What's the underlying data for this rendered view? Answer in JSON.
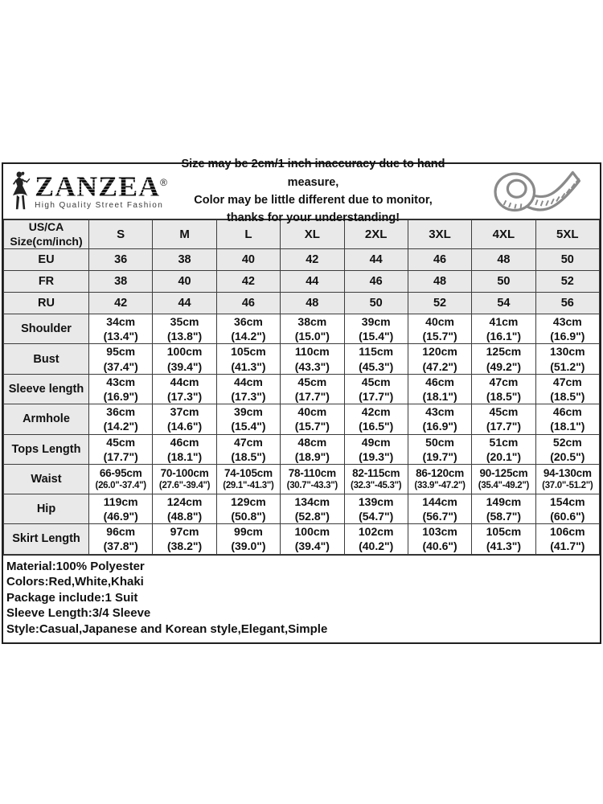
{
  "branding": {
    "name": "ZANZEA",
    "registered_mark": "®",
    "tagline": "High Quality Street Fashion"
  },
  "notice": {
    "lines": [
      "Size may be 2cm/1 inch inaccuracy due to hand measure,",
      "Color may be little different due to monitor,",
      "thanks for your understanding!"
    ]
  },
  "size_table": {
    "corner": {
      "line1": "US/CA",
      "line2": "Size(cm/inch)"
    },
    "size_columns": [
      "S",
      "M",
      "L",
      "XL",
      "2XL",
      "3XL",
      "4XL",
      "5XL"
    ],
    "region_rows": [
      {
        "label": "EU",
        "values": [
          "36",
          "38",
          "40",
          "42",
          "44",
          "46",
          "48",
          "50"
        ]
      },
      {
        "label": "FR",
        "values": [
          "38",
          "40",
          "42",
          "44",
          "46",
          "48",
          "50",
          "52"
        ]
      },
      {
        "label": "RU",
        "values": [
          "42",
          "44",
          "46",
          "48",
          "50",
          "52",
          "54",
          "56"
        ]
      }
    ],
    "measurement_rows": [
      {
        "label": "Shoulder",
        "cm": [
          "34cm",
          "35cm",
          "36cm",
          "38cm",
          "39cm",
          "40cm",
          "41cm",
          "43cm"
        ],
        "inch": [
          "(13.4\")",
          "(13.8\")",
          "(14.2\")",
          "(15.0\")",
          "(15.4\")",
          "(15.7\")",
          "(16.1\")",
          "(16.9\")"
        ]
      },
      {
        "label": "Bust",
        "cm": [
          "95cm",
          "100cm",
          "105cm",
          "110cm",
          "115cm",
          "120cm",
          "125cm",
          "130cm"
        ],
        "inch": [
          "(37.4\")",
          "(39.4\")",
          "(41.3\")",
          "(43.3\")",
          "(45.3\")",
          "(47.2\")",
          "(49.2\")",
          "(51.2\")"
        ]
      },
      {
        "label": "Sleeve length",
        "cm": [
          "43cm",
          "44cm",
          "44cm",
          "45cm",
          "45cm",
          "46cm",
          "47cm",
          "47cm"
        ],
        "inch": [
          "(16.9\")",
          "(17.3\")",
          "(17.3\")",
          "(17.7\")",
          "(17.7\")",
          "(18.1\")",
          "(18.5\")",
          "(18.5\")"
        ]
      },
      {
        "label": "Armhole",
        "cm": [
          "36cm",
          "37cm",
          "39cm",
          "40cm",
          "42cm",
          "43cm",
          "45cm",
          "46cm"
        ],
        "inch": [
          "(14.2\")",
          "(14.6\")",
          "(15.4\")",
          "(15.7\")",
          "(16.5\")",
          "(16.9\")",
          "(17.7\")",
          "(18.1\")"
        ]
      },
      {
        "label": "Tops Length",
        "cm": [
          "45cm",
          "46cm",
          "47cm",
          "48cm",
          "49cm",
          "50cm",
          "51cm",
          "52cm"
        ],
        "inch": [
          "(17.7\")",
          "(18.1\")",
          "(18.5\")",
          "(18.9\")",
          "(19.3\")",
          "(19.7\")",
          "(20.1\")",
          "(20.5\")"
        ]
      },
      {
        "label": "Waist",
        "cm": [
          "66-95cm",
          "70-100cm",
          "74-105cm",
          "78-110cm",
          "82-115cm",
          "86-120cm",
          "90-125cm",
          "94-130cm"
        ],
        "inch": [
          "(26.0\"-37.4\")",
          "(27.6\"-39.4\")",
          "(29.1\"-41.3\")",
          "(30.7\"-43.3\")",
          "(32.3\"-45.3\")",
          "(33.9\"-47.2\")",
          "(35.4\"-49.2\")",
          "(37.0\"-51.2\")"
        ]
      },
      {
        "label": "Hip",
        "cm": [
          "119cm",
          "124cm",
          "129cm",
          "134cm",
          "139cm",
          "144cm",
          "149cm",
          "154cm"
        ],
        "inch": [
          "(46.9\")",
          "(48.8\")",
          "(50.8\")",
          "(52.8\")",
          "(54.7\")",
          "(56.7\")",
          "(58.7\")",
          "(60.6\")"
        ]
      },
      {
        "label": "Skirt Length",
        "cm": [
          "96cm",
          "97cm",
          "99cm",
          "100cm",
          "102cm",
          "103cm",
          "105cm",
          "106cm"
        ],
        "inch": [
          "(37.8\")",
          "(38.2\")",
          "(39.0\")",
          "(39.4\")",
          "(40.2\")",
          "(40.6\")",
          "(41.3\")",
          "(41.7\")"
        ]
      }
    ]
  },
  "product_info": {
    "lines": [
      "Material:100% Polyester",
      "Colors:Red,White,Khaki",
      "Package include:1 Suit",
      "Sleeve Length:3/4 Sleeve",
      "Style:Casual,Japanese and Korean style,Elegant,Simple"
    ]
  },
  "colors": {
    "header_cell_bg": "#e9e9e9",
    "cell_bg": "#ffffff",
    "outer_border": "#1f1f1f",
    "inner_border": "#3c3c3c",
    "text": "#111111",
    "tape_icon_stroke": "#8a8a8a"
  }
}
